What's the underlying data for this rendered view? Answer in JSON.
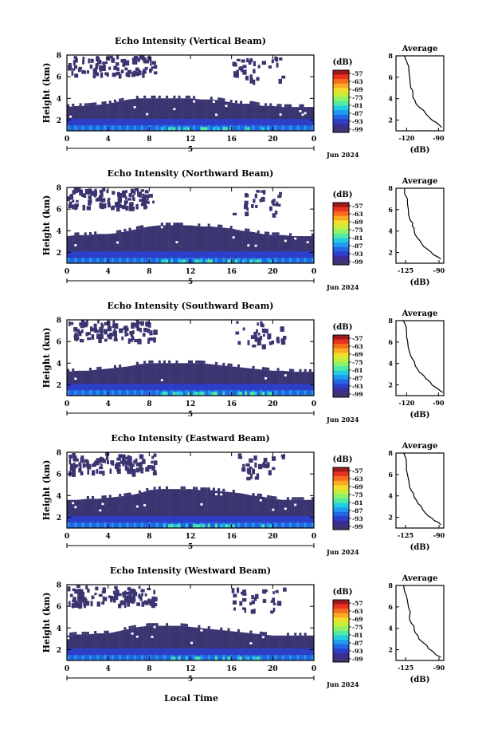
{
  "figure": {
    "footer_xlabel": "Local Time",
    "date_label": "Jun 2024",
    "day_label": "5",
    "colorbar_unit": "(dB)",
    "average_xlabel": "(dB)"
  },
  "colorbar": {
    "ticks": [
      "-57",
      "-63",
      "-69",
      "-75",
      "-81",
      "-87",
      "-93",
      "-99"
    ],
    "colors": [
      "#9e1a1a",
      "#e8331e",
      "#f66d1c",
      "#fbaa22",
      "#f3de2c",
      "#c7ef3a",
      "#8ef26a",
      "#50eaa3",
      "#23cde0",
      "#1f9bf0",
      "#2467e6",
      "#2d3ec9",
      "#3a2d94",
      "#403372"
    ]
  },
  "chart_data": [
    {
      "type": "heatmap",
      "title": "Echo Intensity (Vertical Beam)",
      "ylabel": "Height (km)",
      "xlim": [
        0,
        24
      ],
      "ylim": [
        1,
        8
      ],
      "x_ticks": [
        "0",
        "4",
        "8",
        "12",
        "16",
        "20",
        "0"
      ],
      "y_ticks": [
        "2",
        "4",
        "6",
        "8"
      ],
      "colorbar_range": [
        -99,
        -57
      ],
      "echo_layer_top_km": [
        3.2,
        3.3,
        3.3,
        3.4,
        3.5,
        3.7,
        3.9,
        4.0,
        4.0,
        4.0,
        4.0,
        4.0,
        4.0,
        3.9,
        3.9,
        3.8,
        3.6,
        3.5,
        3.5,
        3.3,
        3.3,
        3.2,
        3.2,
        3.2,
        3.2
      ]
    },
    {
      "type": "line",
      "title": "Average",
      "xlabel": "(dB)",
      "x_ticks": [
        "-120",
        "-90"
      ],
      "y_ticks": [
        "2",
        "4",
        "6",
        "8"
      ],
      "xlim": [
        -130,
        -85
      ],
      "ylim": [
        1,
        8
      ],
      "series": [
        {
          "x": [
            -122,
            -118,
            -117,
            -116,
            -114,
            -112,
            -108,
            -102,
            -96,
            -90,
            -87
          ],
          "y": [
            8.0,
            7.0,
            6.0,
            5.0,
            4.5,
            3.8,
            3.2,
            2.6,
            2.0,
            1.6,
            1.3
          ]
        }
      ]
    },
    {
      "type": "heatmap",
      "title": "Echo Intensity (Northward Beam)",
      "ylabel": "Height (km)",
      "xlim": [
        0,
        24
      ],
      "ylim": [
        1,
        8
      ],
      "x_ticks": [
        "0",
        "4",
        "8",
        "12",
        "16",
        "20",
        "0"
      ],
      "y_ticks": [
        "2",
        "4",
        "6",
        "8"
      ],
      "colorbar_range": [
        -99,
        -57
      ],
      "echo_layer_top_km": [
        3.5,
        3.6,
        3.6,
        3.7,
        3.7,
        3.8,
        4.0,
        4.2,
        4.4,
        4.5,
        4.5,
        4.5,
        4.5,
        4.4,
        4.4,
        4.3,
        4.2,
        4.0,
        3.9,
        3.7,
        3.6,
        3.6,
        3.5,
        3.5,
        3.5
      ]
    },
    {
      "type": "line",
      "title": "Average",
      "xlabel": "(dB)",
      "x_ticks": [
        "-125",
        "-90"
      ],
      "y_ticks": [
        "2",
        "4",
        "6",
        "8"
      ],
      "xlim": [
        -135,
        -85
      ],
      "ylim": [
        1,
        8
      ],
      "series": [
        {
          "x": [
            -126,
            -123,
            -122,
            -120,
            -118,
            -116,
            -113,
            -108,
            -102,
            -96,
            -88
          ],
          "y": [
            8.0,
            7.0,
            6.0,
            5.0,
            4.5,
            4.0,
            3.4,
            2.8,
            2.3,
            1.8,
            1.4
          ]
        }
      ]
    },
    {
      "type": "heatmap",
      "title": "Echo Intensity (Southward Beam)",
      "ylabel": "Height (km)",
      "xlim": [
        0,
        24
      ],
      "ylim": [
        1,
        8
      ],
      "x_ticks": [
        "0",
        "4",
        "8",
        "12",
        "16",
        "20",
        "0"
      ],
      "y_ticks": [
        "2",
        "4",
        "6",
        "8"
      ],
      "colorbar_range": [
        -99,
        -57
      ],
      "echo_layer_top_km": [
        3.2,
        3.3,
        3.3,
        3.4,
        3.5,
        3.6,
        3.7,
        3.9,
        4.0,
        4.0,
        4.0,
        4.0,
        4.0,
        4.0,
        3.9,
        3.8,
        3.7,
        3.6,
        3.5,
        3.4,
        3.3,
        3.3,
        3.2,
        3.2,
        3.2
      ]
    },
    {
      "type": "line",
      "title": "Average",
      "xlabel": "(dB)",
      "x_ticks": [
        "-120",
        "-90"
      ],
      "y_ticks": [
        "2",
        "4",
        "6",
        "8"
      ],
      "xlim": [
        -130,
        -85
      ],
      "ylim": [
        1,
        8
      ],
      "series": [
        {
          "x": [
            -123,
            -120,
            -119,
            -117,
            -115,
            -112,
            -108,
            -102,
            -96,
            -90,
            -86
          ],
          "y": [
            8.0,
            7.0,
            6.0,
            5.0,
            4.5,
            3.8,
            3.2,
            2.6,
            2.0,
            1.6,
            1.3
          ]
        }
      ]
    },
    {
      "type": "heatmap",
      "title": "Echo Intensity (Eastward Beam)",
      "ylabel": "Height (km)",
      "xlim": [
        0,
        24
      ],
      "ylim": [
        1,
        8
      ],
      "x_ticks": [
        "0",
        "4",
        "8",
        "12",
        "16",
        "20",
        "0"
      ],
      "y_ticks": [
        "2",
        "4",
        "6",
        "8"
      ],
      "colorbar_range": [
        -99,
        -57
      ],
      "echo_layer_top_km": [
        3.6,
        3.6,
        3.7,
        3.7,
        3.8,
        3.9,
        4.0,
        4.2,
        4.5,
        4.6,
        4.6,
        4.6,
        4.6,
        4.5,
        4.5,
        4.4,
        4.3,
        4.2,
        4.0,
        3.9,
        3.7,
        3.6,
        3.6,
        3.6,
        3.6
      ]
    },
    {
      "type": "line",
      "title": "Average",
      "xlabel": "(dB)",
      "x_ticks": [
        "-125",
        "-90"
      ],
      "y_ticks": [
        "2",
        "4",
        "6",
        "8"
      ],
      "xlim": [
        -135,
        -85
      ],
      "ylim": [
        1,
        8
      ],
      "series": [
        {
          "x": [
            -127,
            -124,
            -123,
            -121,
            -119,
            -116,
            -112,
            -107,
            -101,
            -95,
            -88
          ],
          "y": [
            8.0,
            7.0,
            6.0,
            5.0,
            4.5,
            3.9,
            3.3,
            2.7,
            2.1,
            1.7,
            1.3
          ]
        }
      ]
    },
    {
      "type": "heatmap",
      "title": "Echo Intensity (Westward Beam)",
      "ylabel": "Height (km)",
      "xlim": [
        0,
        24
      ],
      "ylim": [
        1,
        8
      ],
      "x_ticks": [
        "0",
        "4",
        "8",
        "12",
        "16",
        "20",
        "0"
      ],
      "y_ticks": [
        "2",
        "4",
        "6",
        "8"
      ],
      "colorbar_range": [
        -99,
        -57
      ],
      "echo_layer_top_km": [
        3.3,
        3.4,
        3.4,
        3.5,
        3.5,
        3.7,
        3.9,
        4.1,
        4.2,
        4.2,
        4.2,
        4.2,
        4.1,
        4.0,
        3.9,
        3.8,
        3.7,
        3.6,
        3.5,
        3.4,
        3.3,
        3.3,
        3.3,
        3.3,
        3.3
      ]
    },
    {
      "type": "line",
      "title": "Average",
      "xlabel": "(dB)",
      "x_ticks": [
        "-125",
        "-90"
      ],
      "y_ticks": [
        "2",
        "4",
        "6",
        "8"
      ],
      "xlim": [
        -135,
        -85
      ],
      "ylim": [
        1,
        8
      ],
      "series": [
        {
          "x": [
            -127,
            -124,
            -122,
            -121,
            -119,
            -116,
            -112,
            -107,
            -101,
            -95,
            -88
          ],
          "y": [
            8.0,
            7.0,
            6.0,
            5.0,
            4.5,
            3.9,
            3.3,
            2.7,
            2.1,
            1.7,
            1.3
          ]
        }
      ]
    }
  ]
}
